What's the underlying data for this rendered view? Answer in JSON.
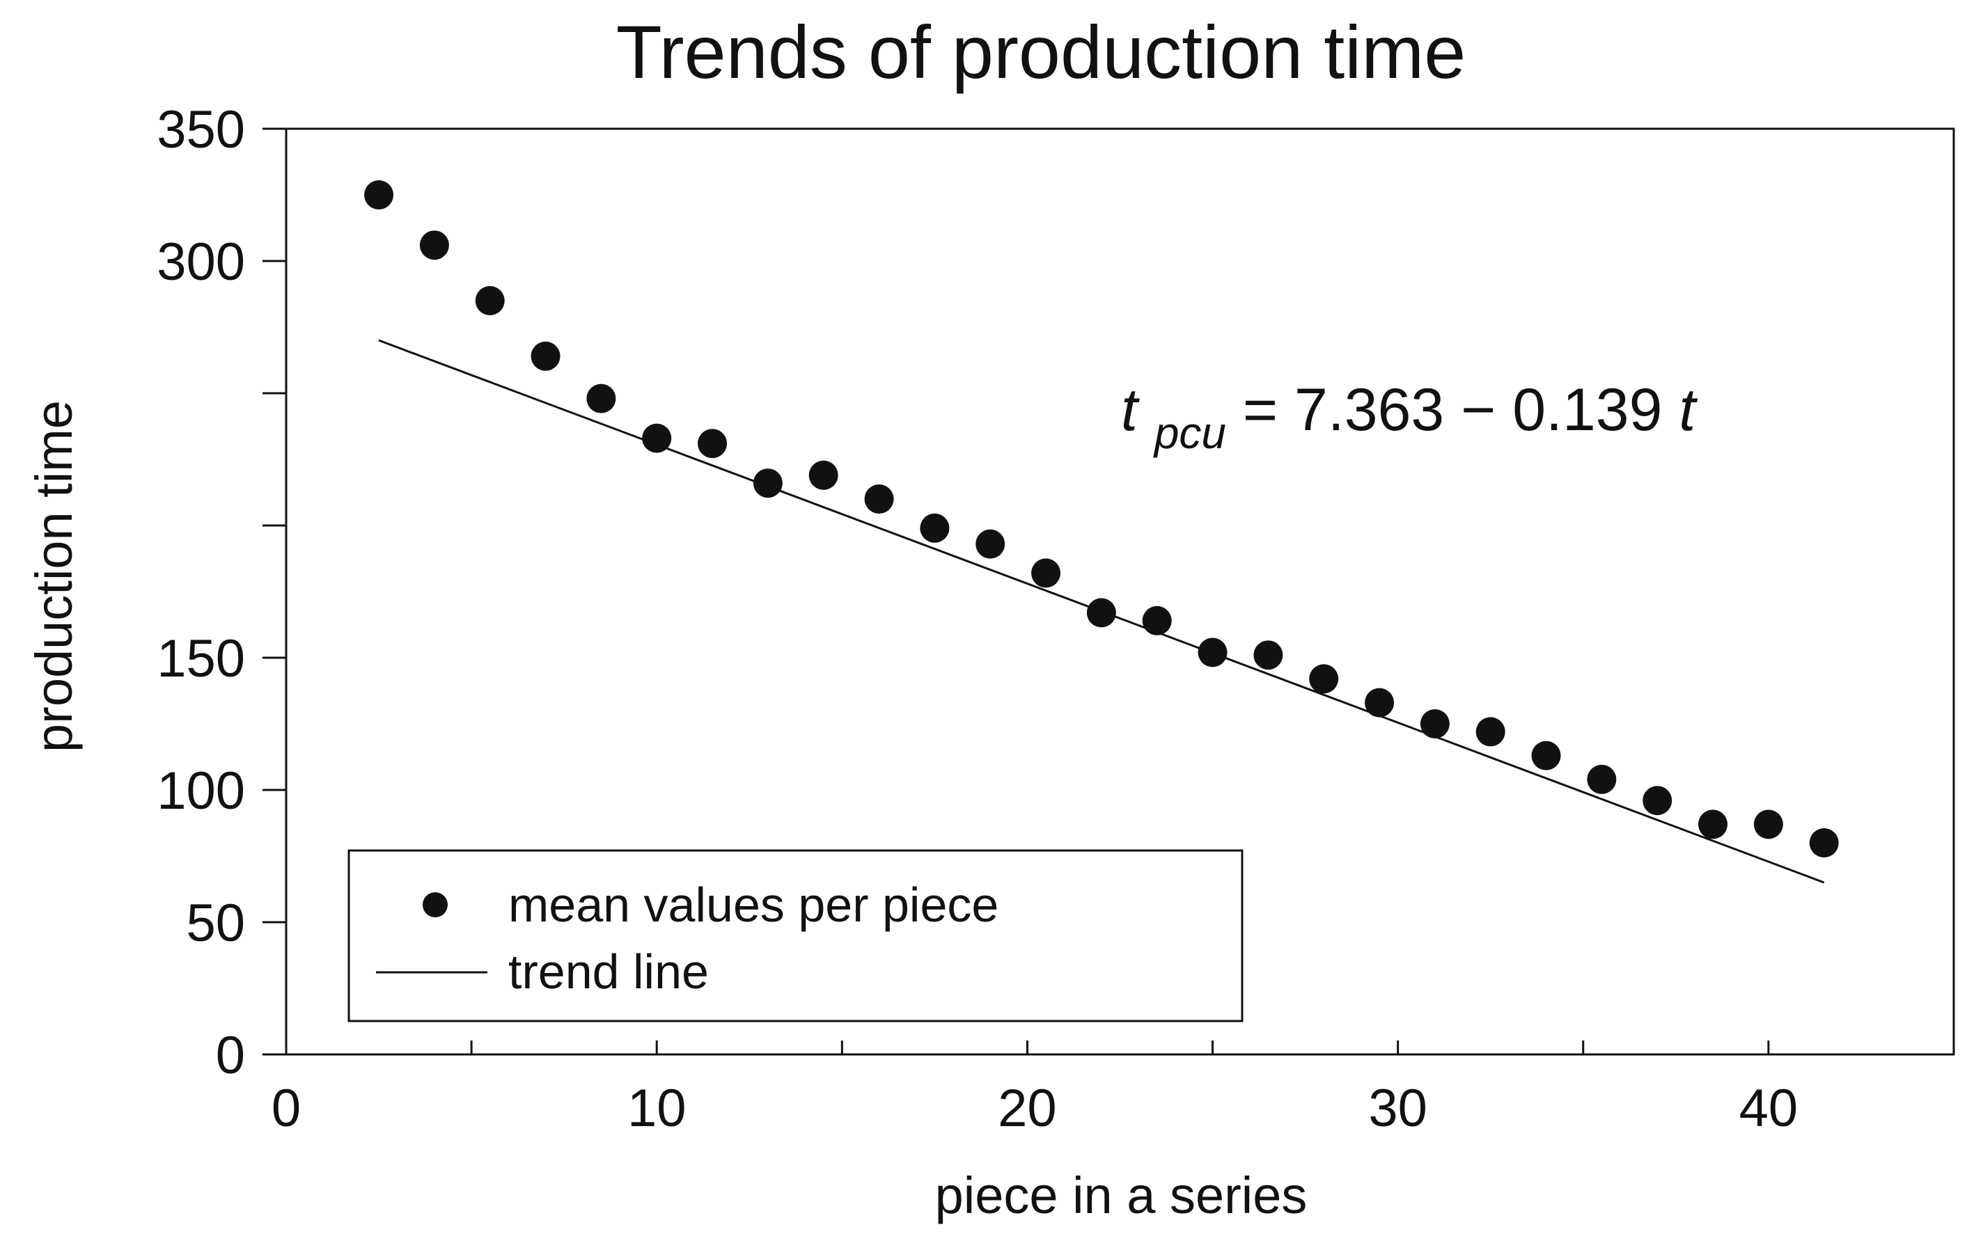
{
  "chart_data": {
    "type": "scatter",
    "title": "Trends of production time",
    "xlabel": "piece in a series",
    "ylabel": "production time",
    "xlim": [
      0,
      45
    ],
    "x_ticks": [
      0,
      10,
      20,
      30,
      40
    ],
    "y_display_range": [
      0,
      350
    ],
    "y_minor_ticks": [
      0,
      50,
      100,
      150,
      200,
      250,
      300,
      350
    ],
    "y_tick_labels": [
      {
        "value": 0,
        "label": "0"
      },
      {
        "value": 50,
        "label": "50"
      },
      {
        "value": 100,
        "label": "100"
      },
      {
        "value": 150,
        "label": "150"
      },
      {
        "value": 300,
        "label": "300"
      },
      {
        "value": 350,
        "label": "350"
      }
    ],
    "series": [
      {
        "name": "mean values per piece",
        "kind": "points",
        "x": [
          2.5,
          4,
          5.5,
          7,
          8.5,
          10,
          11.5,
          13,
          14.5,
          16,
          17.5,
          19,
          20.5,
          22,
          23.5,
          25,
          26.5,
          28,
          29.5,
          31,
          32.5,
          34,
          35.5,
          37,
          38.5,
          40,
          41.5
        ],
        "y": [
          325,
          306,
          285,
          264,
          248,
          233,
          231,
          216,
          219,
          210,
          199,
          193,
          182,
          167,
          164,
          152,
          151,
          142,
          133,
          125,
          122,
          113,
          104,
          96,
          87,
          87,
          80
        ]
      },
      {
        "name": "trend line",
        "kind": "line",
        "x": [
          2.5,
          41.5
        ],
        "y": [
          270,
          65
        ]
      }
    ],
    "legend": {
      "position": "bottom-left",
      "entries": [
        "mean values per piece",
        "trend line"
      ]
    },
    "annotation": {
      "base": "t",
      "subscript": "pcu",
      "equals": " = ",
      "expression": "7.363 − 0.139",
      "variable": "t"
    },
    "colors": {
      "point": "#111111",
      "line": "#111111",
      "axis": "#111111",
      "background": "#ffffff"
    }
  }
}
